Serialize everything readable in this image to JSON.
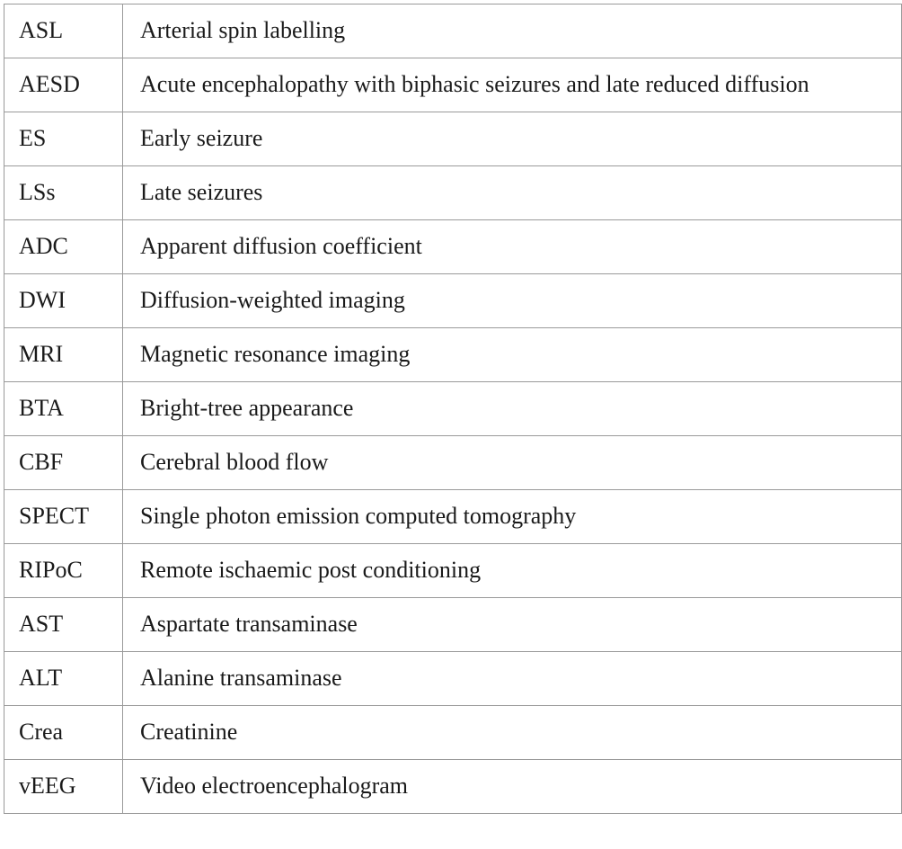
{
  "table": {
    "rows": [
      {
        "abbr": "ASL",
        "definition": "Arterial spin labelling"
      },
      {
        "abbr": "AESD",
        "definition": "Acute encephalopathy with biphasic seizures and late reduced diffusion"
      },
      {
        "abbr": "ES",
        "definition": "Early seizure"
      },
      {
        "abbr": "LSs",
        "definition": "Late seizures"
      },
      {
        "abbr": "ADC",
        "definition": "Apparent diffusion coefficient"
      },
      {
        "abbr": "DWI",
        "definition": "Diffusion-weighted imaging"
      },
      {
        "abbr": "MRI",
        "definition": "Magnetic resonance imaging"
      },
      {
        "abbr": "BTA",
        "definition": "Bright-tree appearance"
      },
      {
        "abbr": "CBF",
        "definition": "Cerebral blood flow"
      },
      {
        "abbr": "SPECT",
        "definition": "Single photon emission computed tomography"
      },
      {
        "abbr": "RIPoC",
        "definition": "Remote ischaemic post conditioning"
      },
      {
        "abbr": "AST",
        "definition": "Aspartate transaminase"
      },
      {
        "abbr": "ALT",
        "definition": "Alanine transaminase"
      },
      {
        "abbr": "Crea",
        "definition": "Creatinine"
      },
      {
        "abbr": "vEEG",
        "definition": "Video electroencephalogram"
      }
    ]
  }
}
